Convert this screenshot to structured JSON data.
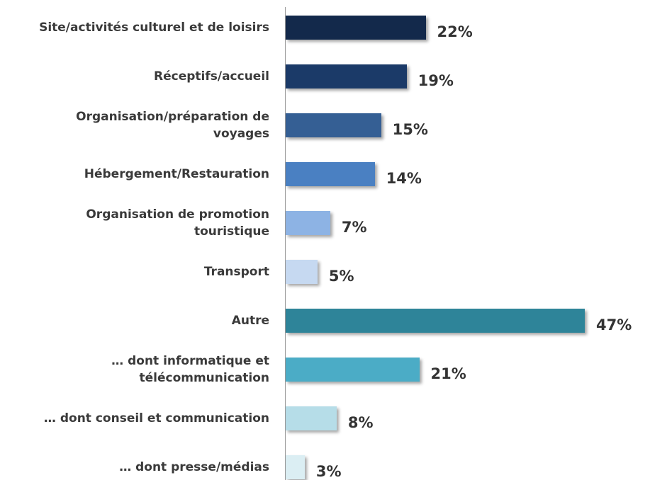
{
  "chart_data": {
    "type": "hbar",
    "categories": [
      "Site/activités culturel et de loisirs",
      "Réceptifs/accueil",
      "Organisation/préparation de voyages",
      "Hébergement/Restauration",
      "Organisation de promotion touristique",
      "Transport",
      "Autre",
      "… dont informatique et télécommunication",
      "… dont conseil et communication",
      "… dont presse/médias"
    ],
    "values": [
      22,
      19,
      15,
      14,
      7,
      5,
      47,
      21,
      8,
      3
    ],
    "value_labels": [
      "22%",
      "19%",
      "15%",
      "14%",
      "7%",
      "5%",
      "47%",
      "21%",
      "8%",
      "3%"
    ],
    "colors": [
      "#13294b",
      "#1b3a68",
      "#355f94",
      "#4a80c2",
      "#8db3e4",
      "#c6d9f1",
      "#2e8499",
      "#4bacc6",
      "#b6dde8",
      "#dbeef3"
    ]
  }
}
